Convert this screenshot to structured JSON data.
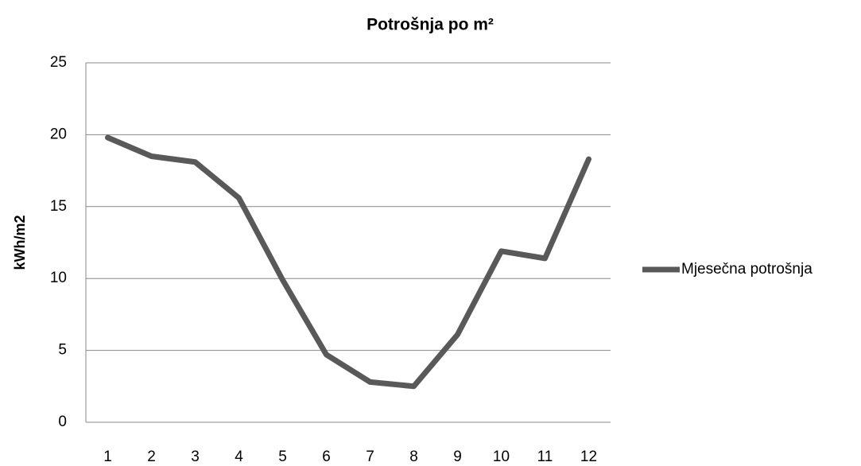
{
  "chart_data": {
    "type": "line",
    "title": "Potrošnja po m²",
    "y_label": "kWh/m2",
    "categories": [
      "1",
      "2",
      "3",
      "4",
      "5",
      "6",
      "7",
      "8",
      "9",
      "10",
      "11",
      "12"
    ],
    "series": [
      {
        "name": "Mjesečna potrošnja",
        "color": "#595959",
        "values": [
          19.8,
          18.5,
          18.1,
          15.6,
          9.9,
          4.7,
          2.8,
          2.5,
          6.1,
          11.9,
          11.4,
          18.3
        ]
      }
    ],
    "ylim": [
      0,
      25
    ],
    "yticks": [
      0,
      5,
      10,
      15,
      20,
      25
    ],
    "grid": true,
    "legend": "right"
  }
}
